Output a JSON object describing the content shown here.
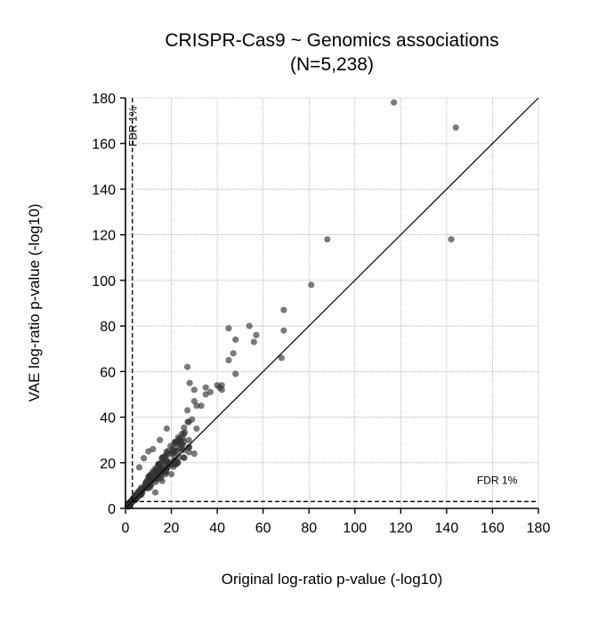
{
  "chart_data": {
    "type": "scatter",
    "title": "CRISPR-Cas9 ~ Genomics associations",
    "subtitle": "(N=5,238)",
    "xlabel": "Original log-ratio p-value (-log10)",
    "ylabel": "VAE log-ratio p-value (-log10)",
    "xlim": [
      0,
      180
    ],
    "ylim": [
      0,
      180
    ],
    "xticks": [
      0,
      20,
      40,
      60,
      80,
      100,
      120,
      140,
      160,
      180
    ],
    "yticks": [
      0,
      20,
      40,
      60,
      80,
      100,
      120,
      140,
      160,
      180
    ],
    "grid": true,
    "identity_line": true,
    "fdr_threshold": 3,
    "fdr_label_x": "FDR 1%",
    "fdr_label_y": "FDR 1%",
    "point_color": "#333333",
    "outliers": [
      [
        117,
        178
      ],
      [
        144,
        167
      ],
      [
        142,
        118
      ],
      [
        88,
        118
      ],
      [
        81,
        98
      ],
      [
        69,
        87
      ],
      [
        69,
        78
      ],
      [
        54,
        80
      ],
      [
        57,
        76
      ],
      [
        56,
        73
      ],
      [
        45,
        79
      ],
      [
        48,
        74
      ],
      [
        68,
        66
      ],
      [
        45,
        65
      ],
      [
        47,
        68
      ],
      [
        37,
        51
      ],
      [
        40,
        54
      ],
      [
        27,
        62
      ],
      [
        35,
        50
      ],
      [
        35,
        53
      ],
      [
        42,
        52
      ],
      [
        42,
        54
      ],
      [
        41,
        53
      ],
      [
        48,
        59
      ],
      [
        28,
        55
      ],
      [
        30,
        52
      ],
      [
        27,
        43
      ],
      [
        29,
        39
      ],
      [
        31,
        35
      ],
      [
        30,
        47
      ],
      [
        33,
        45
      ],
      [
        31,
        45
      ],
      [
        30,
        24
      ],
      [
        24,
        30
      ],
      [
        22,
        20
      ],
      [
        18,
        35
      ],
      [
        15,
        30
      ],
      [
        13,
        7
      ],
      [
        10,
        25
      ],
      [
        8,
        22
      ],
      [
        20,
        15
      ],
      [
        12,
        26
      ],
      [
        25,
        28
      ],
      [
        16,
        12
      ],
      [
        6,
        18
      ]
    ],
    "cluster": {
      "count": 240,
      "x_range": [
        1,
        28
      ],
      "ratio_range": [
        0.85,
        1.4
      ],
      "seed": 7
    }
  }
}
